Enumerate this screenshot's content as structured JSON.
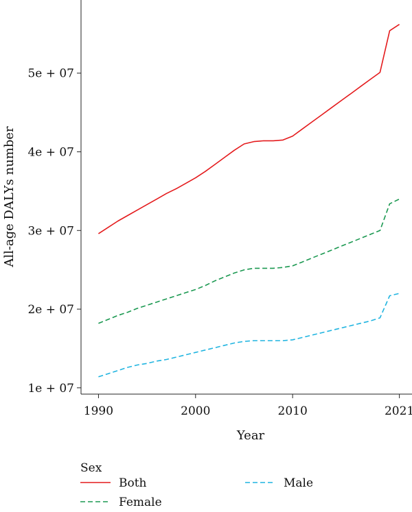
{
  "chart_data": {
    "type": "line",
    "xlabel": "Year",
    "ylabel": "All-age DALYs number",
    "x_ticks": [
      1990,
      2000,
      2010,
      2021
    ],
    "y_ticks": [
      {
        "value": 10000000,
        "label": "1e + 07"
      },
      {
        "value": 20000000,
        "label": "2e + 07"
      },
      {
        "value": 30000000,
        "label": "3e + 07"
      },
      {
        "value": 40000000,
        "label": "4e + 07"
      },
      {
        "value": 50000000,
        "label": "5e + 07"
      }
    ],
    "xlim": [
      1988.2,
      2022.3
    ],
    "ylim": [
      9200000,
      59300000
    ],
    "grid": false,
    "legend_title": "Sex",
    "legend_placement": "bottom",
    "series": [
      {
        "name": "Both",
        "color": "#e41a1c",
        "dash": "solid",
        "x": [
          1990,
          1991,
          1992,
          1993,
          1994,
          1995,
          1996,
          1997,
          1998,
          1999,
          2000,
          2001,
          2002,
          2003,
          2004,
          2005,
          2006,
          2007,
          2008,
          2009,
          2010,
          2011,
          2012,
          2013,
          2014,
          2015,
          2016,
          2017,
          2018,
          2019,
          2020,
          2021
        ],
        "y": [
          29600000,
          30400000,
          31200000,
          31900000,
          32600000,
          33300000,
          34000000,
          34700000,
          35300000,
          36000000,
          36700000,
          37500000,
          38400000,
          39300000,
          40200000,
          41000000,
          41300000,
          41400000,
          41400000,
          41500000,
          42000000,
          42900000,
          43800000,
          44700000,
          45600000,
          46500000,
          47400000,
          48300000,
          49200000,
          50100000,
          55400000,
          56200000
        ]
      },
      {
        "name": "Female",
        "color": "#1a9850",
        "dash": "dashed",
        "x": [
          1990,
          1991,
          1992,
          1993,
          1994,
          1995,
          1996,
          1997,
          1998,
          1999,
          2000,
          2001,
          2002,
          2003,
          2004,
          2005,
          2006,
          2007,
          2008,
          2009,
          2010,
          2011,
          2012,
          2013,
          2014,
          2015,
          2016,
          2017,
          2018,
          2019,
          2020,
          2021
        ],
        "y": [
          18200000,
          18700000,
          19200000,
          19600000,
          20100000,
          20500000,
          20900000,
          21300000,
          21700000,
          22100000,
          22500000,
          23000000,
          23600000,
          24100000,
          24600000,
          25000000,
          25200000,
          25200000,
          25200000,
          25300000,
          25500000,
          26000000,
          26500000,
          27000000,
          27500000,
          28000000,
          28500000,
          29000000,
          29500000,
          30000000,
          33400000,
          34000000
        ]
      },
      {
        "name": "Male",
        "color": "#1fb4e0",
        "dash": "dashed",
        "x": [
          1990,
          1991,
          1992,
          1993,
          1994,
          1995,
          1996,
          1997,
          1998,
          1999,
          2000,
          2001,
          2002,
          2003,
          2004,
          2005,
          2006,
          2007,
          2008,
          2009,
          2010,
          2011,
          2012,
          2013,
          2014,
          2015,
          2016,
          2017,
          2018,
          2019,
          2020,
          2021
        ],
        "y": [
          11400000,
          11800000,
          12200000,
          12600000,
          12900000,
          13100000,
          13400000,
          13600000,
          13900000,
          14200000,
          14500000,
          14800000,
          15100000,
          15400000,
          15700000,
          15900000,
          16000000,
          16000000,
          16000000,
          16000000,
          16100000,
          16400000,
          16700000,
          17000000,
          17300000,
          17600000,
          17900000,
          18200000,
          18500000,
          18900000,
          21700000,
          22000000
        ]
      }
    ]
  }
}
